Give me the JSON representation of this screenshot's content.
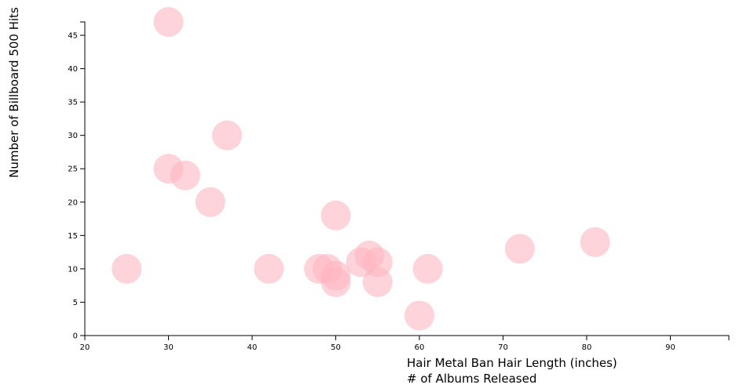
{
  "chart_data": {
    "type": "scatter",
    "xlabel": [
      "Hair Metal Ban Hair Length (inches)",
      "# of Albums Released"
    ],
    "ylabel": "Number of Billboard 500 Hits",
    "x": [
      30,
      37,
      30,
      32,
      35,
      50,
      25,
      42,
      48,
      49,
      50,
      50,
      53,
      54,
      55,
      55,
      61,
      60,
      72,
      81
    ],
    "values": [
      47,
      30,
      25,
      24,
      20,
      18,
      10,
      10,
      10,
      10,
      9,
      8,
      11,
      12,
      11,
      8,
      10,
      3,
      13,
      14
    ],
    "color": "#ffb6c1",
    "xlim": [
      20,
      97
    ],
    "ylim": [
      0,
      47
    ],
    "xticks": [
      20,
      30,
      40,
      50,
      60,
      70,
      80,
      90
    ],
    "yticks": [
      0,
      5,
      10,
      15,
      20,
      25,
      30,
      35,
      40,
      45
    ]
  }
}
